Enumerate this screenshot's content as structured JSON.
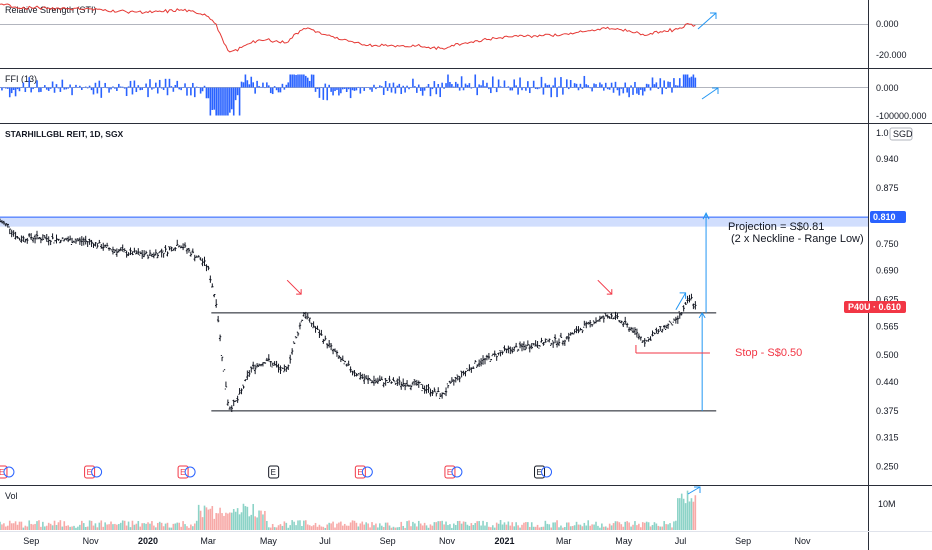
{
  "chart_data": {
    "type": "candlestick",
    "symbol_title": "STARHILLGBL REIT, 1D, SGX",
    "currency_label": "SGD",
    "price_scale_top_label": "1.0",
    "price_ticks": [
      "0.940",
      "0.875",
      "0.810",
      "0.750",
      "0.690",
      "0.625",
      "0.565",
      "0.500",
      "0.440",
      "0.375",
      "0.315",
      "0.250"
    ],
    "price_range": [
      0.22,
      1.01
    ],
    "time_axis_labels": [
      "Sep",
      "Nov",
      "2020",
      "Mar",
      "May",
      "Jul",
      "Sep",
      "Nov",
      "2021",
      "Mar",
      "May",
      "Jul",
      "Sep",
      "Nov"
    ],
    "price_path": [
      {
        "date": "2019-08-01",
        "close": 0.8
      },
      {
        "date": "2019-08-10",
        "close": 0.79
      },
      {
        "date": "2019-08-20",
        "close": 0.76
      },
      {
        "date": "2019-09-01",
        "close": 0.765
      },
      {
        "date": "2019-10-01",
        "close": 0.76
      },
      {
        "date": "2019-11-01",
        "close": 0.755
      },
      {
        "date": "2019-11-20",
        "close": 0.74
      },
      {
        "date": "2019-12-10",
        "close": 0.73
      },
      {
        "date": "2020-01-01",
        "close": 0.725
      },
      {
        "date": "2020-01-20",
        "close": 0.735
      },
      {
        "date": "2020-02-01",
        "close": 0.75
      },
      {
        "date": "2020-02-20",
        "close": 0.72
      },
      {
        "date": "2020-03-01",
        "close": 0.7
      },
      {
        "date": "2020-03-10",
        "close": 0.62
      },
      {
        "date": "2020-03-16",
        "close": 0.5
      },
      {
        "date": "2020-03-23",
        "close": 0.38
      },
      {
        "date": "2020-04-01",
        "close": 0.4
      },
      {
        "date": "2020-04-15",
        "close": 0.47
      },
      {
        "date": "2020-05-01",
        "close": 0.49
      },
      {
        "date": "2020-05-20",
        "close": 0.46
      },
      {
        "date": "2020-06-08",
        "close": 0.595
      },
      {
        "date": "2020-06-20",
        "close": 0.56
      },
      {
        "date": "2020-07-01",
        "close": 0.53
      },
      {
        "date": "2020-07-20",
        "close": 0.48
      },
      {
        "date": "2020-08-10",
        "close": 0.445
      },
      {
        "date": "2020-09-01",
        "close": 0.44
      },
      {
        "date": "2020-10-01",
        "close": 0.435
      },
      {
        "date": "2020-10-28",
        "close": 0.41
      },
      {
        "date": "2020-11-10",
        "close": 0.445
      },
      {
        "date": "2020-12-01",
        "close": 0.48
      },
      {
        "date": "2021-01-01",
        "close": 0.51
      },
      {
        "date": "2021-02-01",
        "close": 0.525
      },
      {
        "date": "2021-03-01",
        "close": 0.535
      },
      {
        "date": "2021-04-01",
        "close": 0.575
      },
      {
        "date": "2021-04-20",
        "close": 0.59
      },
      {
        "date": "2021-05-10",
        "close": 0.56
      },
      {
        "date": "2021-05-25",
        "close": 0.53
      },
      {
        "date": "2021-06-10",
        "close": 0.56
      },
      {
        "date": "2021-06-25",
        "close": 0.575
      },
      {
        "date": "2021-07-05",
        "close": 0.61
      },
      {
        "date": "2021-07-10",
        "close": 0.63
      },
      {
        "date": "2021-07-15",
        "close": 0.61
      }
    ],
    "neckline": 0.595,
    "range_low": 0.375,
    "projection_level": 0.81,
    "stop_level": 0.505,
    "annotations": {
      "projection_line1": "Projection = S$0.81",
      "projection_line2": "(2 x Neckline - Range Low)",
      "stop": "Stop - S$0.50"
    },
    "price_tags": {
      "projection_tag": "0.810",
      "current_tag": "P40U · 0.610"
    },
    "earnings_markers": [
      "E",
      "E",
      "E",
      "E",
      "E",
      "E",
      "E"
    ],
    "indicators": [
      {
        "name": "Relative Strength (STI)",
        "ticks": [
          "0.000",
          "-20.000"
        ]
      },
      {
        "name": "FFI (13)",
        "ticks": [
          "0.000",
          "-100000.000"
        ]
      }
    ],
    "volume": {
      "label": "Vol",
      "ticks": [
        "10M"
      ]
    },
    "colors": {
      "price_bar": "#131722",
      "rs_line": "#e53935",
      "ffi_bar": "#2962ff",
      "projection_band": "#c5d6fc",
      "projection_tag": "#2962ff",
      "current_tag": "#f23645",
      "arrow_red": "#f23645",
      "arrow_blue": "#2196f3",
      "vol_up": "#8cd3c7",
      "vol_down": "#f7a9a7"
    }
  }
}
